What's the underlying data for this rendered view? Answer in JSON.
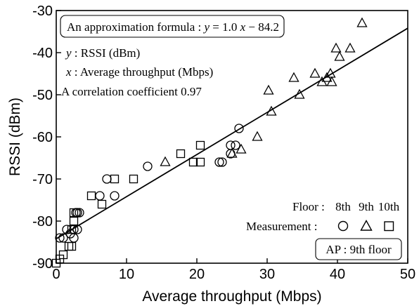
{
  "chart_data": {
    "type": "scatter",
    "xlabel": "Average throughput (Mbps)",
    "ylabel": "RSSI (dBm)",
    "xlim": [
      0,
      50
    ],
    "ylim": [
      -90,
      -30
    ],
    "x_ticks": [
      0,
      10,
      20,
      30,
      40,
      50
    ],
    "y_ticks": [
      -90,
      -80,
      -70,
      -60,
      -50,
      -40,
      -30
    ],
    "grid": false,
    "series": [
      {
        "name": "8th",
        "marker": "circle",
        "points": [
          [
            0.5,
            -84
          ],
          [
            1.0,
            -84
          ],
          [
            1.5,
            -82
          ],
          [
            2.0,
            -83
          ],
          [
            2.5,
            -82
          ],
          [
            2.5,
            -84
          ],
          [
            2.8,
            -78
          ],
          [
            3.0,
            -78
          ],
          [
            3.3,
            -78
          ],
          [
            3.0,
            -82
          ],
          [
            6.2,
            -74
          ],
          [
            7.2,
            -70
          ],
          [
            8.3,
            -74
          ],
          [
            13.0,
            -67
          ],
          [
            23.2,
            -66
          ],
          [
            23.6,
            -66
          ],
          [
            24.8,
            -62
          ],
          [
            24.8,
            -64
          ],
          [
            25.5,
            -62
          ],
          [
            26.0,
            -58
          ]
        ]
      },
      {
        "name": "9th",
        "marker": "triangle",
        "points": [
          [
            15.5,
            -66
          ],
          [
            25.0,
            -64
          ],
          [
            26.3,
            -63
          ],
          [
            28.6,
            -60
          ],
          [
            30.2,
            -49
          ],
          [
            30.6,
            -54
          ],
          [
            33.8,
            -46
          ],
          [
            34.6,
            -50
          ],
          [
            36.8,
            -45
          ],
          [
            37.8,
            -47
          ],
          [
            38.5,
            -46
          ],
          [
            39.0,
            -45
          ],
          [
            39.2,
            -47
          ],
          [
            39.8,
            -39
          ],
          [
            40.3,
            -41
          ],
          [
            41.8,
            -39
          ],
          [
            43.5,
            -33
          ]
        ]
      },
      {
        "name": "10th",
        "marker": "square",
        "points": [
          [
            0.0,
            -90
          ],
          [
            0.5,
            -89
          ],
          [
            1.0,
            -88
          ],
          [
            1.8,
            -86
          ],
          [
            2.2,
            -86
          ],
          [
            2.2,
            -82
          ],
          [
            2.5,
            -80
          ],
          [
            2.5,
            -78
          ],
          [
            5.0,
            -74
          ],
          [
            6.5,
            -76
          ],
          [
            8.3,
            -70
          ],
          [
            11.0,
            -70
          ],
          [
            17.7,
            -64
          ],
          [
            19.5,
            -66
          ],
          [
            20.5,
            -62
          ],
          [
            20.5,
            -66
          ]
        ]
      }
    ],
    "fit_line": {
      "slope": 1.0,
      "intercept": -84.2
    },
    "annotations": {
      "formula_prefix": "An approximation formula : ",
      "formula_var_y": "y",
      "formula_rhs": " = 1.0 ",
      "formula_var_x": "x",
      "formula_tail": " − 84.2",
      "y_def_var": "y",
      "y_def": " : RSSI (dBm)",
      "x_def_var": "x",
      "x_def": " : Average throughput (Mbps)",
      "correlation": "A correlation coefficient 0.97",
      "floor_label": "Floor :",
      "floor_names": [
        "8th",
        "9th",
        "10th"
      ],
      "measurement_label": "Measurement :",
      "ap_label": "AP : 9th floor"
    }
  }
}
